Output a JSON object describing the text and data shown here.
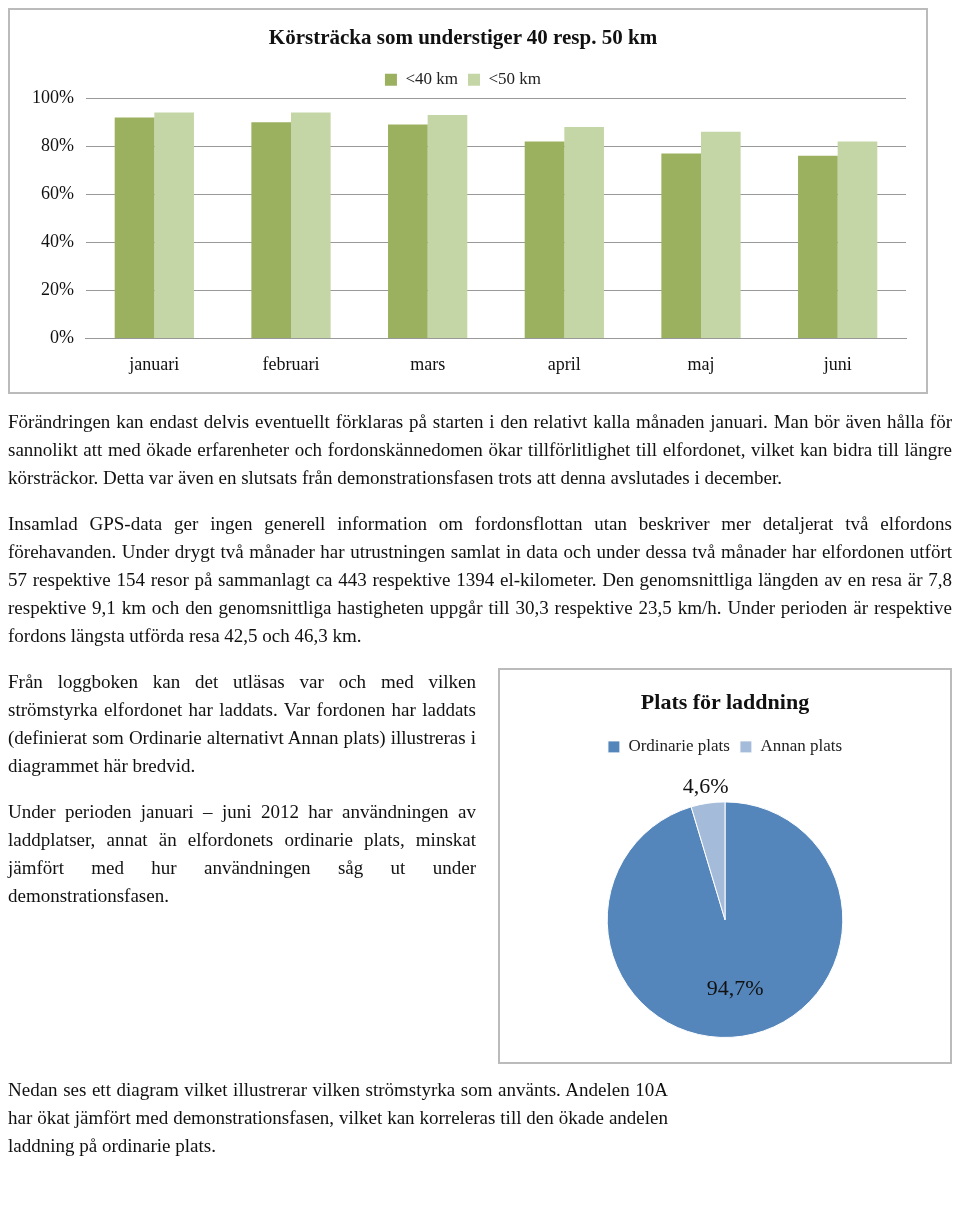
{
  "chart_data": [
    {
      "type": "bar",
      "title": "Körsträcka som understiger 40 resp. 50 km",
      "categories": [
        "januari",
        "februari",
        "mars",
        "april",
        "maj",
        "juni"
      ],
      "series": [
        {
          "name": "<40 km",
          "color": "#9bb160",
          "values": [
            92,
            90,
            89,
            82,
            77,
            76
          ]
        },
        {
          "name": "<50 km",
          "color": "#c5d6a6",
          "values": [
            94,
            94,
            93,
            88,
            86,
            82
          ]
        }
      ],
      "ylim": [
        0,
        100
      ],
      "yticks": [
        {
          "value": 0,
          "label": "0%"
        },
        {
          "value": 20,
          "label": "20%"
        },
        {
          "value": 40,
          "label": "40%"
        },
        {
          "value": 60,
          "label": "60%"
        },
        {
          "value": 80,
          "label": "80%"
        },
        {
          "value": 100,
          "label": "100%"
        }
      ],
      "grid": "y",
      "legend": "top",
      "annotations": [
        "Förändringen kan endast delvis eventuellt förklaras på starten i den relativt kalla månaden januari. Man bör även hålla för sannolikt att med ökade erfarenheter och fordonskännedomen ökar tillförlitlighet till elfordonet, vilket kan bidra till längre körsträckor. Detta var även en slutsats från demonstrationsfasen trots att denna avslutades i december.",
        "Insamlad GPS-data ger ingen generell information om fordonsflottan utan beskriver mer detaljerat två elfordons förehavanden. Under drygt två månader har utrustningen samlat in data och under dessa två månader har elfordonen utfört 57 respektive 154 resor på sammanlagt ca 443 respektive 1394 el-kilometer. Den genomsnittliga längden av en resa är 7,8 respektive 9,1 km och den genomsnittliga hastigheten uppgår till 30,3 respektive 23,5 km/h. Under perioden är respektive fordons längsta utförda resa 42,5 och 46,3 km."
      ]
    },
    {
      "type": "pie",
      "title": "Plats för laddning",
      "categories": [
        "Ordinarie plats",
        "Annan plats"
      ],
      "values": [
        94.7,
        4.6
      ],
      "colors": [
        "#5586bb",
        "#a5bbda"
      ],
      "value_labels": [
        "94,7%",
        "4,6%"
      ],
      "legend": "top",
      "annotations": [
        "Från loggboken kan det utläsas var och med vilken strömstyrka elfordonet har laddats. Var fordonen har laddats (definierat som Ordinarie alternativt Annan plats) illustreras i diagrammet här bredvid.",
        "Under perioden januari – juni 2012 har användningen av laddplatser, annat än elfordonets ordinarie plats, minskat jämfört med hur användningen såg ut under demonstrationsfasen.",
        "Nedan ses ett diagram vilket illustrerar vilken strömstyrka som använts. Andelen 10A har ökat jämfört med demonstrationsfasen, vilket kan korreleras till den ökade andelen laddning på ordinarie plats."
      ]
    }
  ]
}
